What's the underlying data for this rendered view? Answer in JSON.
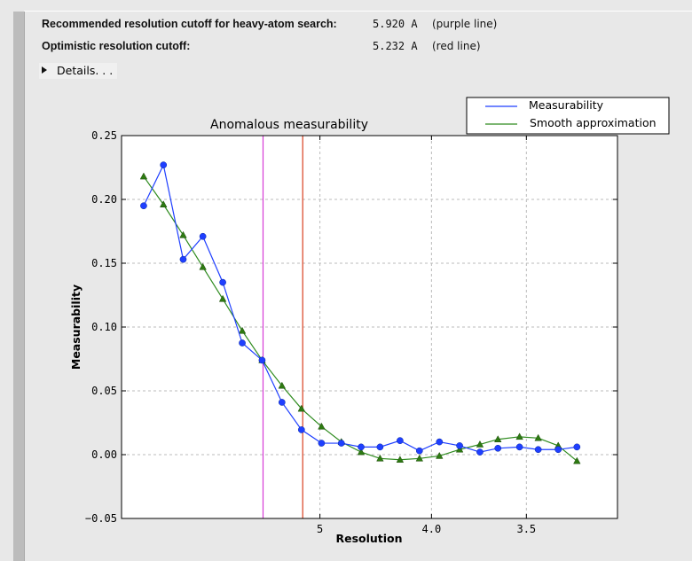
{
  "summary": {
    "recommended": {
      "label": "Recommended resolution cutoff for heavy-atom search:",
      "value": "5.920 A",
      "note": "(purple line)"
    },
    "optimistic": {
      "label": "Optimistic resolution cutoff:",
      "value": "5.232 A",
      "note": "(red line)"
    },
    "details_label": "Details. . ."
  },
  "chart_data": {
    "type": "line",
    "title": "Anomalous measurability",
    "xlabel": "Resolution",
    "ylabel": "Measurability",
    "x_scale": "reciprocal-square (1/d^2), resolution decreasing left to right",
    "xlim_resolution": [
      "inf",
      3.16
    ],
    "ylim": [
      -0.05,
      0.25
    ],
    "yticks": [
      "0.25",
      "0.20",
      "0.15",
      "0.10",
      "0.05",
      "0.00",
      "−0.05"
    ],
    "xticks": [
      {
        "value": 5,
        "label": "5"
      },
      {
        "value": 4.0,
        "label": "4.0"
      },
      {
        "value": 3.5,
        "label": "3.5"
      }
    ],
    "grid": true,
    "legend": "top-right, outside above plot",
    "x": [
      14.97,
      10.88,
      8.97,
      7.81,
      7.0,
      6.41,
      5.94,
      5.56,
      5.25,
      4.98,
      4.75,
      4.55,
      4.38,
      4.22,
      4.08,
      3.95,
      3.83,
      3.72,
      3.63,
      3.53,
      3.45,
      3.37,
      3.3
    ],
    "series": [
      {
        "name": "Measurability",
        "color": "#1f3fff",
        "marker": "circle",
        "values": [
          0.195,
          0.227,
          0.153,
          0.171,
          0.135,
          0.0875,
          0.074,
          0.041,
          0.0195,
          0.009,
          0.009,
          0.006,
          0.006,
          0.011,
          0.003,
          0.01,
          0.007,
          0.002,
          0.005,
          0.006,
          0.004,
          0.004,
          0.006
        ]
      },
      {
        "name": "Smooth approximation",
        "color": "#2e8b1e",
        "marker": "triangle",
        "values": [
          0.218,
          0.196,
          0.172,
          0.147,
          0.122,
          0.097,
          0.074,
          0.054,
          0.036,
          0.022,
          0.01,
          0.002,
          -0.003,
          -0.004,
          -0.003,
          -0.001,
          0.004,
          0.008,
          0.012,
          0.014,
          0.013,
          0.007,
          -0.005
        ]
      }
    ],
    "vlines": [
      {
        "resolution": 5.92,
        "color": "#d63ad6"
      },
      {
        "resolution": 5.232,
        "color": "#d8401f"
      }
    ]
  }
}
